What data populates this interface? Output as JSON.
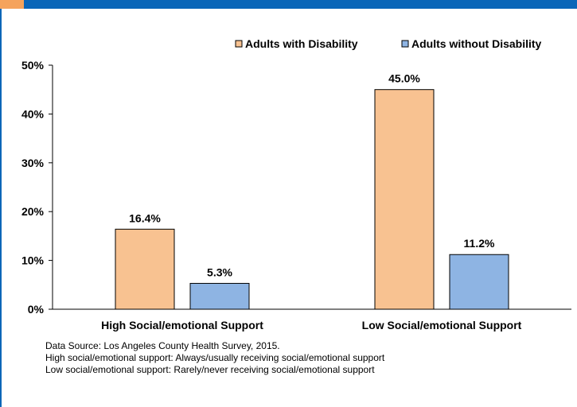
{
  "colors": {
    "header_bar": "#0a66b8",
    "header_accent": "#f5a35c",
    "left_rule": "#0a66b8",
    "series_with": "#f8c291",
    "series_without": "#8eb4e3",
    "bar_stroke": "#000000"
  },
  "chart_data": {
    "type": "bar",
    "categories": [
      "High Social/emotional Support",
      "Low Social/emotional Support"
    ],
    "series": [
      {
        "name": "Adults with Disability",
        "values": [
          16.4,
          45.0
        ],
        "labels": [
          "16.4%",
          "45.0%"
        ],
        "color": "#f8c291"
      },
      {
        "name": "Adults without Disability",
        "values": [
          5.3,
          11.2
        ],
        "labels": [
          "5.3%",
          "11.2%"
        ],
        "color": "#8eb4e3"
      }
    ],
    "ylim": [
      0,
      50
    ],
    "yticks": [
      0,
      10,
      20,
      30,
      40,
      50
    ],
    "ytick_labels": [
      "0%",
      "10%",
      "20%",
      "30%",
      "40%",
      "50%"
    ],
    "title": "",
    "xlabel": "",
    "ylabel": "",
    "grid": false,
    "legend_position": "top-right"
  },
  "footnotes": {
    "source": "Data Source: Los Angeles County Health Survey, 2015.",
    "high_def": "High social/emotional support: Always/usually receiving social/emotional support",
    "low_def": "Low social/emotional support: Rarely/never receiving social/emotional support"
  }
}
